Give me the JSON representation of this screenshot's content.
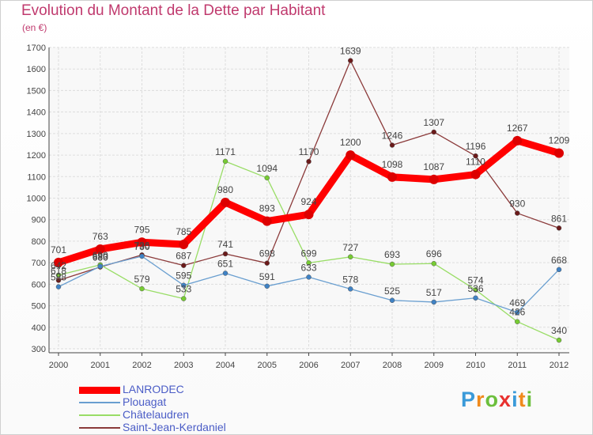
{
  "title": "Evolution du Montant de la Dette par Habitant",
  "subtitle": "(en €)",
  "logo": {
    "p": "P",
    "r": "r",
    "o": "o",
    "x": "x",
    "i": "i",
    "t": "t",
    "i2": "i"
  },
  "colors": {
    "title": "#c03a6e",
    "legend_text": "#4a5cc6"
  },
  "chart_data": {
    "type": "line",
    "x": [
      "2000",
      "2001",
      "2002",
      "2003",
      "2004",
      "2005",
      "2006",
      "2007",
      "2008",
      "2009",
      "2010",
      "2011",
      "2012"
    ],
    "ylim": [
      300,
      1700
    ],
    "yticks": [
      300,
      400,
      500,
      600,
      700,
      800,
      900,
      1000,
      1100,
      1200,
      1300,
      1400,
      1500,
      1600,
      1700
    ],
    "grid": true,
    "legend_position": "bottom-left",
    "series": [
      {
        "name": "LANRODEC",
        "color": "#ff0000",
        "marker": "#dd0000",
        "width": 9,
        "labels": [
          "701",
          "763",
          "795",
          "785",
          "980",
          "893",
          "924",
          "1200",
          "1098",
          "1087",
          "1110",
          "1267",
          "1209"
        ],
        "values": [
          701,
          763,
          795,
          785,
          980,
          893,
          924,
          1200,
          1098,
          1087,
          1110,
          1267,
          1209
        ]
      },
      {
        "name": "Plouagat",
        "color": "#6a9fd0",
        "marker": "#3f82c5",
        "width": 1.3,
        "labels": [
          "588",
          "683",
          "730",
          "595",
          "651",
          "591",
          "633",
          "578",
          "525",
          "517",
          "536",
          "469",
          "668"
        ],
        "values": [
          588,
          683,
          730,
          595,
          651,
          591,
          633,
          578,
          525,
          517,
          536,
          469,
          668
        ]
      },
      {
        "name": "Châtelaudren",
        "color": "#99dd66",
        "marker": "#77cc33",
        "width": 1.3,
        "labels": [
          "642",
          "690",
          "579",
          "533",
          "1171",
          "1094",
          "699",
          "727",
          "693",
          "696",
          "574",
          "426",
          "340"
        ],
        "values": [
          642,
          690,
          579,
          533,
          1171,
          1094,
          699,
          727,
          693,
          696,
          574,
          426,
          340
        ]
      },
      {
        "name": "Saint-Jean-Kerdaniel",
        "color": "#8b3a3a",
        "marker": "#6b1a1a",
        "width": 1.3,
        "labels": [
          "618",
          "680",
          "736",
          "687",
          "741",
          "698",
          "1170",
          "1639",
          "1246",
          "1307",
          "1196",
          "930",
          "861"
        ],
        "values": [
          618,
          680,
          736,
          687,
          741,
          698,
          1170,
          1639,
          1246,
          1307,
          1196,
          930,
          861
        ]
      }
    ]
  }
}
